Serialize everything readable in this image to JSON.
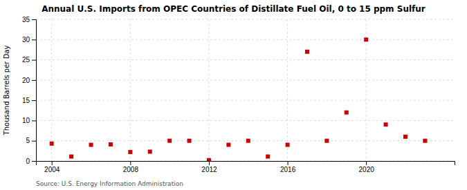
{
  "chart_data": {
    "type": "scatter",
    "title": "Annual U.S. Imports from OPEC Countries of Distillate Fuel Oil, 0 to 15 ppm Sulfur",
    "ylabel": "Thousand Barrels per Day",
    "annotation": "Source: U.S. Energy Information Administration",
    "x": [
      2004,
      2005,
      2006,
      2007,
      2008,
      2009,
      2010,
      2011,
      2012,
      2013,
      2014,
      2015,
      2016,
      2017,
      2018,
      2019,
      2020,
      2021,
      2022,
      2023
    ],
    "values": [
      4.3,
      1.1,
      4.0,
      4.1,
      2.2,
      2.3,
      5.0,
      5.0,
      0.2,
      4.0,
      5.0,
      1.1,
      4.0,
      27.0,
      5.0,
      12.0,
      30.0,
      9.0,
      6.0,
      5.0
    ],
    "color": "#cc0000",
    "marker": "square",
    "xlim": [
      2003.2,
      2024.5
    ],
    "xticks": [
      2004,
      2008,
      2012,
      2016,
      2020
    ],
    "ylim": [
      0,
      35
    ],
    "yticks": [
      0,
      5,
      10,
      15,
      20,
      25,
      30,
      35
    ],
    "grid": true
  }
}
